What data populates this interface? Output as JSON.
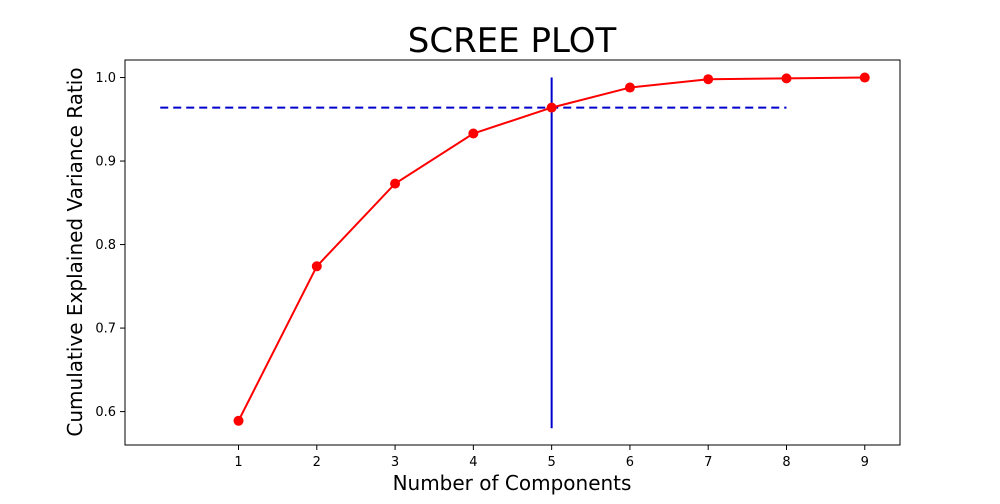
{
  "chart_data": {
    "type": "line",
    "title": "SCREE PLOT",
    "xlabel": "Number of Components",
    "ylabel": "Cumulative Explained Variance Ratio",
    "x": [
      1,
      2,
      3,
      4,
      5,
      6,
      7,
      8,
      9
    ],
    "y": [
      0.589,
      0.774,
      0.873,
      0.933,
      0.964,
      0.988,
      0.998,
      0.999,
      1.0
    ],
    "x_ticks": [
      1,
      2,
      3,
      4,
      5,
      6,
      7,
      8,
      9
    ],
    "y_ticks": [
      0.6,
      0.7,
      0.8,
      0.9,
      1.0
    ],
    "xlim": [
      -0.45,
      9.45
    ],
    "ylim": [
      0.56,
      1.021
    ],
    "grid": false,
    "series": [
      {
        "values": [
          0.589,
          0.774,
          0.873,
          0.933,
          0.964,
          0.988,
          0.998,
          0.999,
          1.0
        ],
        "color": "#ff0000",
        "marker": "circle"
      }
    ],
    "reference_lines": {
      "horizontal": {
        "y": 0.964,
        "x_from": 0,
        "x_to": 8,
        "style": "dashed",
        "color": "#0000cc"
      },
      "vertical": {
        "x": 5,
        "y_from": 0.58,
        "y_to": 1.0,
        "style": "solid",
        "color": "#0000cc"
      }
    }
  }
}
